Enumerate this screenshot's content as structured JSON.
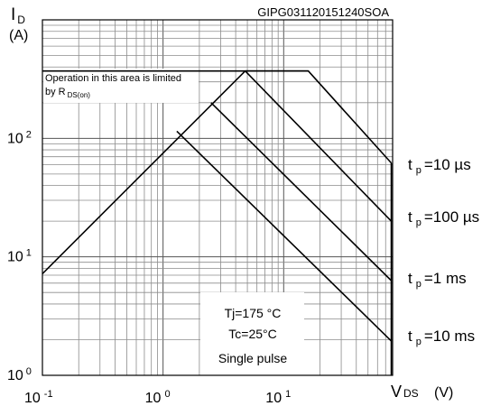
{
  "chart_data": {
    "type": "line",
    "title": "",
    "figure_code": "GIPG031120151240SOA",
    "ylabel": {
      "symbol": "I",
      "subscript": "D",
      "unit": "(A)"
    },
    "xlabel": {
      "symbol": "V",
      "subscript": "DS",
      "unit": "(V)"
    },
    "scale": {
      "x": "log",
      "y": "log"
    },
    "xlim": [
      0.1,
      80
    ],
    "ylim": [
      1,
      1000
    ],
    "grid": true,
    "x_ticks": [
      {
        "value": 0.1,
        "base": "10",
        "exp": "-1"
      },
      {
        "value": 1,
        "base": "10",
        "exp": "0"
      },
      {
        "value": 10,
        "base": "10",
        "exp": "1"
      }
    ],
    "y_ticks": [
      {
        "value": 1,
        "base": "10",
        "exp": "0"
      },
      {
        "value": 10,
        "base": "10",
        "exp": "1"
      },
      {
        "value": 100,
        "base": "10",
        "exp": "2"
      }
    ],
    "rdson_boundary": [
      {
        "x": 0.1,
        "y": 7.2
      },
      {
        "x": 4.8,
        "y": 370
      }
    ],
    "current_limit": {
      "y": 370,
      "x_from": 0.1,
      "x_to": 16
    },
    "series": [
      {
        "name": "tp=10 µs",
        "label": {
          "prefix": "t",
          "sub": "p",
          "text": "=10 µs"
        },
        "points": [
          {
            "x": 4.8,
            "y": 370
          },
          {
            "x": 16,
            "y": 370
          },
          {
            "x": 78,
            "y": 62
          }
        ]
      },
      {
        "name": "tp=100 µs",
        "label": {
          "prefix": "t",
          "sub": "p",
          "text": "=100 µs"
        },
        "points": [
          {
            "x": 4.8,
            "y": 370
          },
          {
            "x": 78,
            "y": 20
          }
        ]
      },
      {
        "name": "tp=1 ms",
        "label": {
          "prefix": "t",
          "sub": "p",
          "text": "=1 ms"
        },
        "points": [
          {
            "x": 2.5,
            "y": 200
          },
          {
            "x": 78,
            "y": 6.3
          }
        ]
      },
      {
        "name": "tp=10 ms",
        "label": {
          "prefix": "t",
          "sub": "p",
          "text": "=10 ms"
        },
        "points": [
          {
            "x": 1.3,
            "y": 115
          },
          {
            "x": 78,
            "y": 1.95
          }
        ]
      }
    ],
    "annotations": {
      "rdson": {
        "line1": "Operation in this area is limited",
        "line2_prefix": "by R",
        "line2_sub": "DS(on)"
      },
      "conditions": [
        "Tj=175 °C",
        "Tc=25°C",
        "Single pulse"
      ]
    }
  }
}
